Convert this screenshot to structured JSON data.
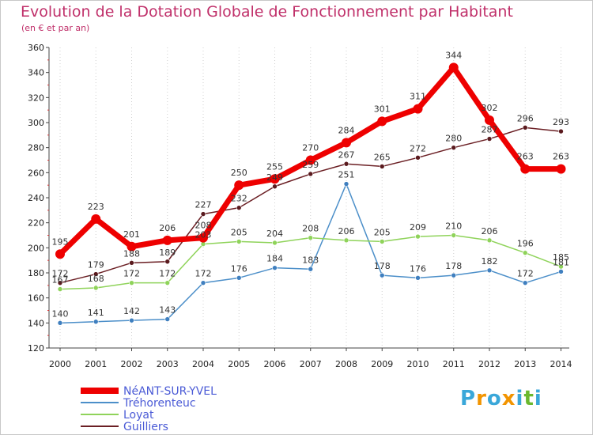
{
  "chart_data": {
    "type": "line",
    "title": "Evolution de la Dotation Globale de Fonctionnement par Habitant",
    "subtitle": "(en € et par an)",
    "categories": [
      "2000",
      "2001",
      "2002",
      "2003",
      "2004",
      "2005",
      "2006",
      "2007",
      "2008",
      "2009",
      "2010",
      "2011",
      "2012",
      "2013",
      "2014"
    ],
    "ylim": [
      120,
      360
    ],
    "yticks": [
      120,
      140,
      160,
      180,
      200,
      220,
      240,
      260,
      280,
      300,
      320,
      340,
      360
    ],
    "grid": "vertical dotted",
    "legend_position": "bottom-left",
    "series": [
      {
        "name": "NéANT-SUR-YVEL",
        "color": "#ee0000",
        "values": [
          195,
          223,
          201,
          206,
          208,
          250,
          255,
          270,
          284,
          301,
          311,
          344,
          302,
          263,
          263
        ]
      },
      {
        "name": "Tréhorenteuc",
        "color": "#4c8fc9",
        "values": [
          140,
          141,
          142,
          143,
          172,
          176,
          184,
          183,
          251,
          178,
          176,
          178,
          182,
          172,
          181
        ]
      },
      {
        "name": "Loyat",
        "color": "#8fd35a",
        "values": [
          167,
          168,
          172,
          172,
          203,
          205,
          204,
          208,
          206,
          205,
          209,
          210,
          206,
          196,
          185
        ]
      },
      {
        "name": "Guilliers",
        "color": "#6b1f24",
        "values": [
          172,
          179,
          188,
          189,
          227,
          232,
          249,
          259,
          267,
          265,
          272,
          280,
          287,
          296,
          293
        ]
      }
    ]
  },
  "logo": {
    "text": "Proxiti",
    "colors": [
      "#3aa7d9",
      "#f29400",
      "#3aa7d9",
      "#f29400",
      "#3aa7d9",
      "#6ab82e",
      "#3aa7d9"
    ]
  }
}
